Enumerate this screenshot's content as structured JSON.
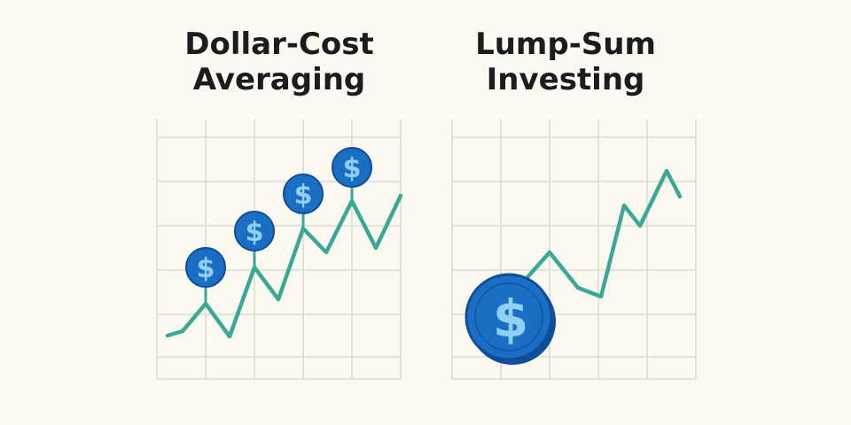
{
  "colors": {
    "background": "#fcfaf0",
    "grid": "#dcdcd4",
    "line": "#3aa896",
    "coin_fill": "#1a6fc4",
    "coin_edge": "#0f4e9a",
    "coin_symbol": "#8fd0f5",
    "title_text": "#1c1c1c"
  },
  "panels": {
    "dca": {
      "title_line1": "Dollar-Cost",
      "title_line2": "Averaging",
      "coin_icon": "dollar-coin-icon",
      "coin_symbol": "$",
      "coin_count": 4
    },
    "lump_sum": {
      "title_line1": "Lump-Sum",
      "title_line2": "Investing",
      "coin_icon": "dollar-coin-icon",
      "coin_symbol": "$",
      "coin_count": 1
    }
  }
}
